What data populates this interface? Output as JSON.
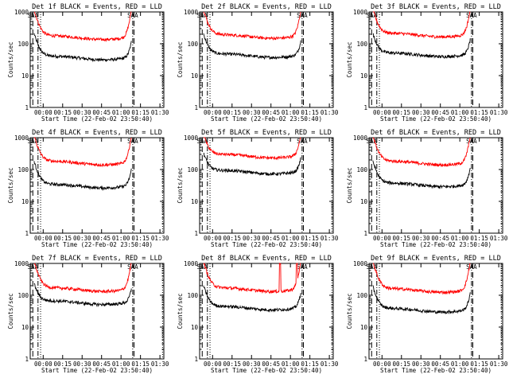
{
  "panel_ids": [
    "1f",
    "2f",
    "3f",
    "4f",
    "5f",
    "6f",
    "7f",
    "8f",
    "9f"
  ],
  "chart_data": [
    {
      "type": "line",
      "title": "Det 1f BLACK = Events, RED = LLD",
      "xlabel": "Start Time (22-Feb-02 23:50:40)",
      "ylabel": "Counts/sec",
      "yscale": "log",
      "ylim": [
        1,
        1000
      ],
      "series": [
        {
          "name": "BLACK = Events",
          "color": "#000000",
          "baseline": 38,
          "start_spike": 170,
          "end_spike": 80
        },
        {
          "name": "RED = LLD",
          "color": "#ff0000",
          "baseline": 165,
          "start_spike": 1000,
          "end_spike": 1000
        }
      ]
    },
    {
      "type": "line",
      "title": "Det 2f BLACK = Events, RED = LLD",
      "xlabel": "Start Time (22-Feb-02 23:50:40)",
      "ylabel": "Counts/sec",
      "yscale": "log",
      "ylim": [
        1,
        1000
      ],
      "series": [
        {
          "name": "BLACK = Events",
          "color": "#000000",
          "baseline": 45,
          "start_spike": 160,
          "end_spike": 80
        },
        {
          "name": "RED = LLD",
          "color": "#ff0000",
          "baseline": 180,
          "start_spike": 1000,
          "end_spike": 1000
        }
      ]
    },
    {
      "type": "line",
      "title": "Det 3f BLACK = Events, RED = LLD",
      "xlabel": "Start Time (22-Feb-02 23:50:40)",
      "ylabel": "Counts/sec",
      "yscale": "log",
      "ylim": [
        1,
        1000
      ],
      "series": [
        {
          "name": "BLACK = Events",
          "color": "#000000",
          "baseline": 48,
          "start_spike": 160,
          "end_spike": 90
        },
        {
          "name": "RED = LLD",
          "color": "#ff0000",
          "baseline": 200,
          "start_spike": 1000,
          "end_spike": 1000
        }
      ]
    },
    {
      "type": "line",
      "title": "Det 4f BLACK = Events, RED = LLD",
      "xlabel": "Start Time (22-Feb-02 23:50:40)",
      "ylabel": "Counts/sec",
      "yscale": "log",
      "ylim": [
        1,
        1000
      ],
      "series": [
        {
          "name": "BLACK = Events",
          "color": "#000000",
          "baseline": 32,
          "start_spike": 150,
          "end_spike": 70
        },
        {
          "name": "RED = LLD",
          "color": "#ff0000",
          "baseline": 170,
          "start_spike": 1000,
          "end_spike": 1000
        }
      ]
    },
    {
      "type": "line",
      "title": "Det 5f BLACK = Events, RED = LLD",
      "xlabel": "Start Time (22-Feb-02 23:50:40)",
      "ylabel": "Counts/sec",
      "yscale": "log",
      "ylim": [
        1,
        1000
      ],
      "series": [
        {
          "name": "BLACK = Events",
          "color": "#000000",
          "baseline": 88,
          "start_spike": 250,
          "end_spike": 150
        },
        {
          "name": "RED = LLD",
          "color": "#ff0000",
          "baseline": 280,
          "start_spike": 1000,
          "end_spike": 1000
        }
      ]
    },
    {
      "type": "line",
      "title": "Det 6f BLACK = Events, RED = LLD",
      "xlabel": "Start Time (22-Feb-02 23:50:40)",
      "ylabel": "Counts/sec",
      "yscale": "log",
      "ylim": [
        1,
        1000
      ],
      "series": [
        {
          "name": "BLACK = Events",
          "color": "#000000",
          "baseline": 35,
          "start_spike": 150,
          "end_spike": 80
        },
        {
          "name": "RED = LLD",
          "color": "#ff0000",
          "baseline": 170,
          "start_spike": 1000,
          "end_spike": 1000
        }
      ]
    },
    {
      "type": "line",
      "title": "Det 7f BLACK = Events, RED = LLD",
      "xlabel": "Start Time (22-Feb-02 23:50:40)",
      "ylabel": "Counts/sec",
      "yscale": "log",
      "ylim": [
        1,
        1000
      ],
      "series": [
        {
          "name": "BLACK = Events",
          "color": "#000000",
          "baseline": 62,
          "start_spike": 170,
          "end_spike": 100
        },
        {
          "name": "RED = LLD",
          "color": "#ff0000",
          "baseline": 160,
          "start_spike": 1000,
          "end_spike": 1000
        }
      ]
    },
    {
      "type": "line",
      "title": "Det 8f BLACK = Events, RED = LLD",
      "xlabel": "Start Time (22-Feb-02 23:50:40)",
      "ylabel": "Counts/sec",
      "yscale": "log",
      "ylim": [
        1,
        1000
      ],
      "series": [
        {
          "name": "BLACK = Events",
          "color": "#000000",
          "baseline": 42,
          "start_spike": 160,
          "end_spike": 80
        },
        {
          "name": "RED = LLD",
          "color": "#ff0000",
          "baseline": 160,
          "start_spike": 1000,
          "end_spike": 1000,
          "bursts": [
            "00:52",
            "01:05"
          ]
        }
      ]
    },
    {
      "type": "line",
      "title": "Det 9f BLACK = Events, RED = LLD",
      "xlabel": "Start Time (22-Feb-02 23:50:40)",
      "ylabel": "Counts/sec",
      "yscale": "log",
      "ylim": [
        1,
        1000
      ],
      "series": [
        {
          "name": "BLACK = Events",
          "color": "#000000",
          "baseline": 36,
          "start_spike": 150,
          "end_spike": 80
        },
        {
          "name": "RED = LLD",
          "color": "#ff0000",
          "baseline": 150,
          "start_spike": 1000,
          "end_spike": 1000
        }
      ]
    }
  ],
  "x_ticks": [
    "00:00",
    "00:15",
    "00:30",
    "00:45",
    "01:00",
    "01:15",
    "01:30"
  ],
  "y_ticks": [
    "1",
    "10",
    "100",
    "1000"
  ],
  "markers": {
    "dashed": [
      "23:52",
      "01:10"
    ],
    "dotted": [
      "23:58",
      "01:32"
    ],
    "dashdot": [
      "23:56",
      "01:09"
    ],
    "saa_labels": [
      "SAA",
      "SAA"
    ]
  }
}
